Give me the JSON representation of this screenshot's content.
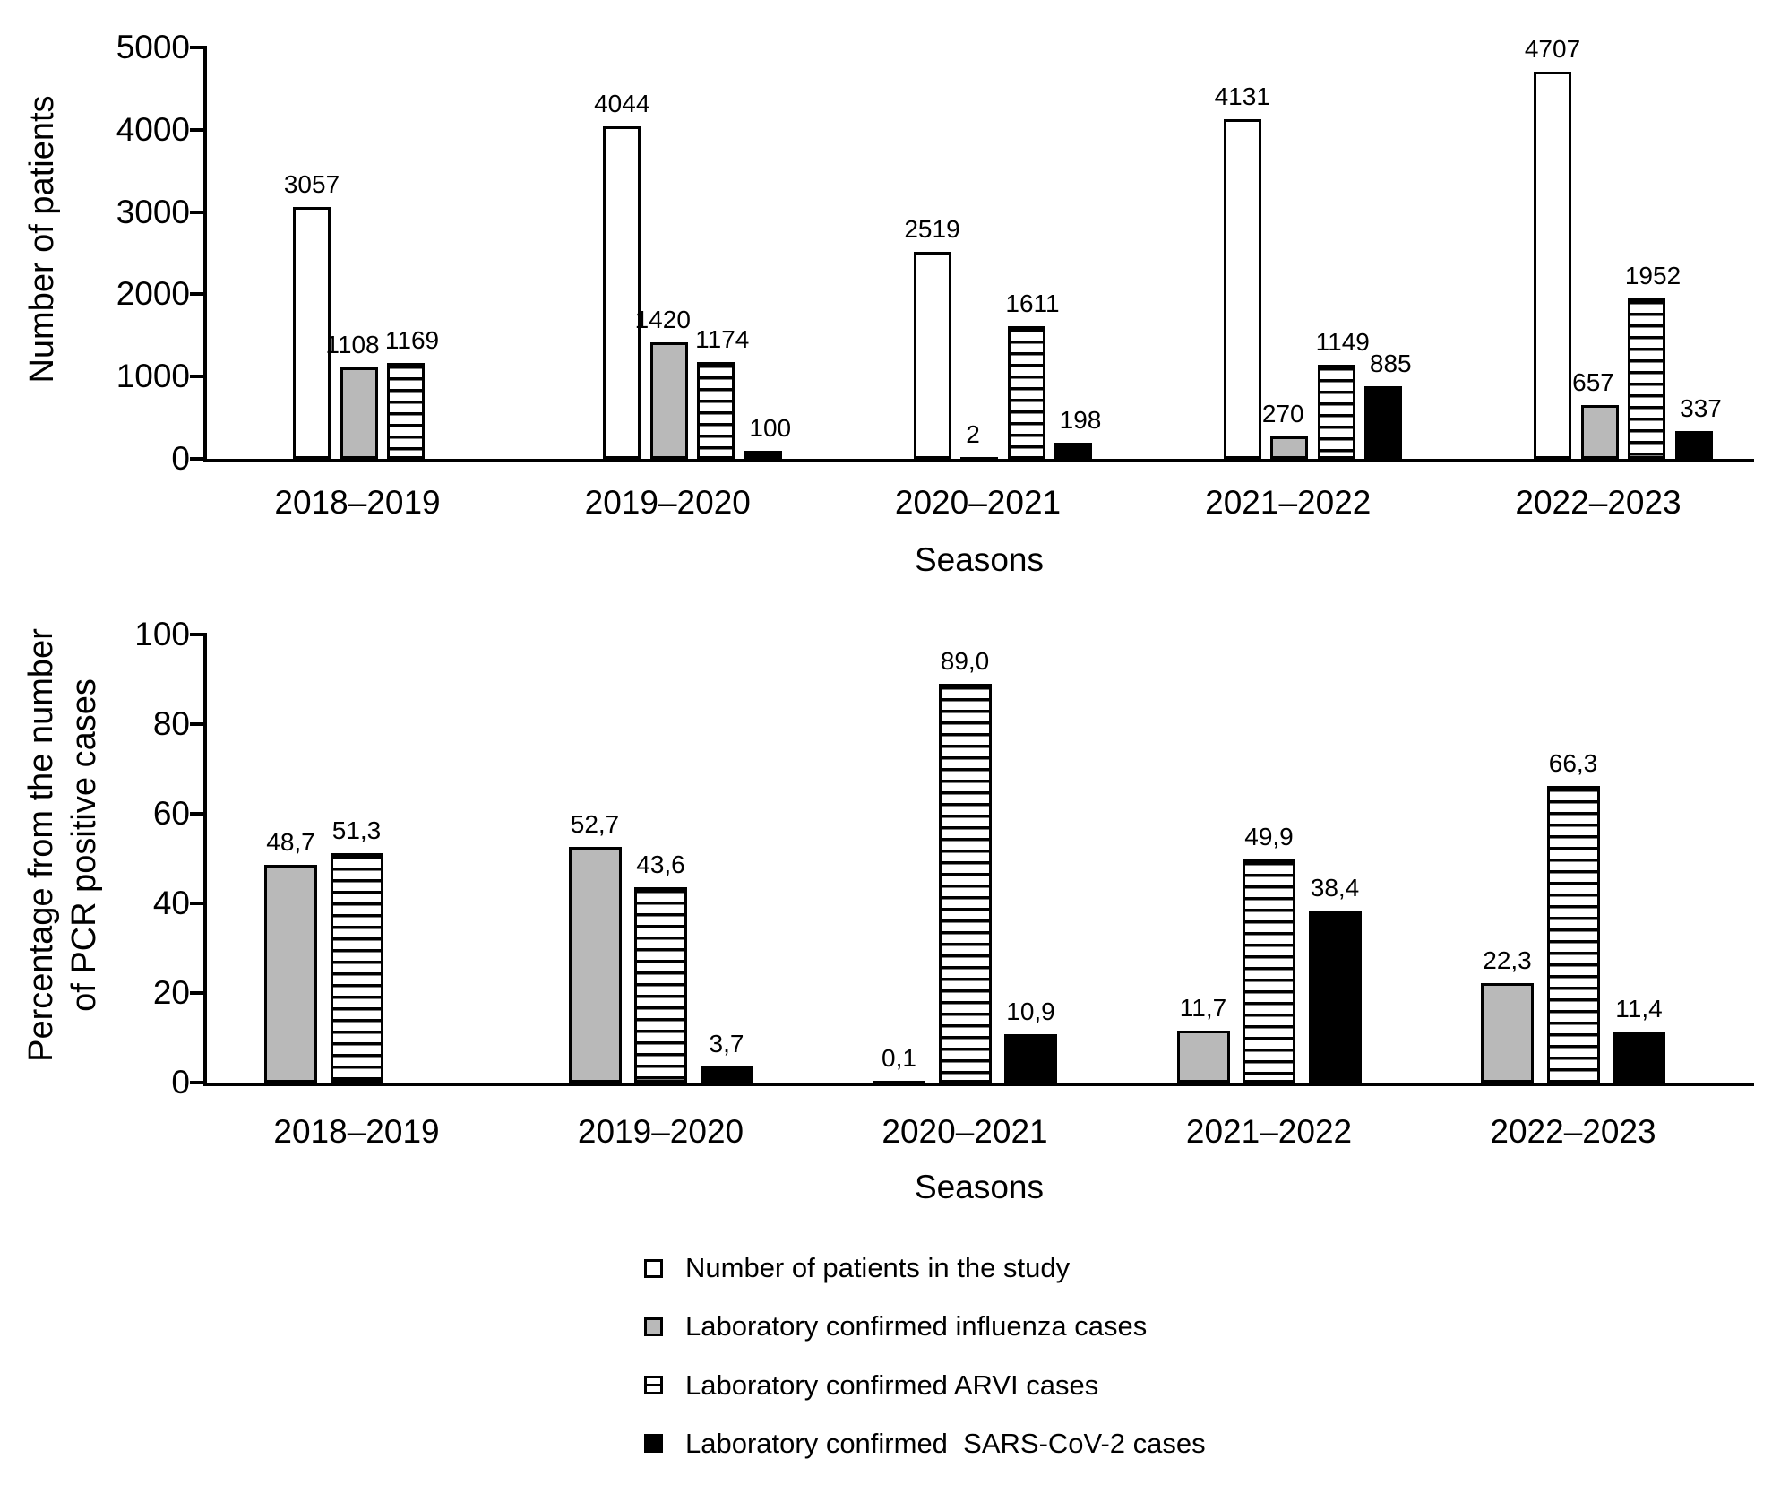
{
  "figure": {
    "background": "#ffffff",
    "colors": {
      "gray_fill": "#b9b9b9",
      "black": "#000000",
      "white": "#ffffff",
      "stroke": "#000000"
    }
  },
  "chart_data": [
    {
      "type": "bar",
      "title": "",
      "ylabel": "Number of patients",
      "xlabel": "Seasons",
      "categories": [
        "2018–2019",
        "2019–2020",
        "2020–2021",
        "2021–2022",
        "2022–2023"
      ],
      "ylim": [
        0,
        5000
      ],
      "yticks": [
        "0",
        "1000",
        "2000",
        "3000",
        "4000",
        "5000"
      ],
      "grid": false,
      "legend_position": "shared-bottom",
      "series": [
        {
          "name": "Number of patients in the study",
          "style": "white",
          "values": [
            3057,
            4044,
            2519,
            4131,
            4707
          ],
          "labels": [
            "3057",
            "4044",
            "2519",
            "4131",
            "4707"
          ]
        },
        {
          "name": "Laboratory confirmed influenza cases",
          "style": "gray",
          "values": [
            1108,
            1420,
            2,
            270,
            657
          ],
          "labels": [
            "1108",
            "1420",
            "2",
            "270",
            "657"
          ]
        },
        {
          "name": "Laboratory confirmed ARVI cases",
          "style": "striped",
          "values": [
            1169,
            1174,
            1611,
            1149,
            1952
          ],
          "labels": [
            "1169",
            "1174",
            "1611",
            "1149",
            "1952"
          ]
        },
        {
          "name": "Laboratory confirmed SARS-CoV-2 cases",
          "style": "black",
          "values": [
            null,
            100,
            198,
            885,
            337
          ],
          "labels": [
            null,
            "100",
            "198",
            "885",
            "337"
          ]
        }
      ]
    },
    {
      "type": "bar",
      "title": "",
      "ylabel": "Percentage from the number of PCR positive cases",
      "ylabel_lines": [
        "Percentage from the number",
        "of PCR positive cases"
      ],
      "xlabel": "Seasons",
      "categories": [
        "2018–2019",
        "2019–2020",
        "2020–2021",
        "2021–2022",
        "2022–2023"
      ],
      "ylim": [
        0,
        100
      ],
      "yticks": [
        "0",
        "20",
        "40",
        "60",
        "80",
        "100"
      ],
      "grid": false,
      "legend_position": "shared-bottom",
      "series": [
        {
          "name": "Laboratory confirmed influenza cases",
          "style": "gray",
          "values": [
            48.7,
            52.7,
            0.1,
            11.7,
            22.3
          ],
          "labels": [
            "48,7",
            "52,7",
            "0,1",
            "11,7",
            "22,3"
          ]
        },
        {
          "name": "Laboratory confirmed ARVI cases",
          "style": "striped",
          "values": [
            51.3,
            43.6,
            89.0,
            49.9,
            66.3
          ],
          "labels": [
            "51,3",
            "43,6",
            "89,0",
            "49,9",
            "66,3"
          ]
        },
        {
          "name": "Laboratory confirmed SARS-CoV-2 cases",
          "style": "black",
          "values": [
            null,
            3.7,
            10.9,
            38.4,
            11.4
          ],
          "labels": [
            null,
            "3,7",
            "10,9",
            "38,4",
            "11,4"
          ]
        }
      ]
    }
  ],
  "legend": {
    "items": [
      {
        "label": "Number of patients in the study",
        "swatch": "white"
      },
      {
        "label": "Laboratory confirmed influenza cases",
        "swatch": "gray"
      },
      {
        "label": "Laboratory confirmed ARVI cases",
        "swatch": "striped"
      },
      {
        "label": "Laboratory confirmed  SARS-CoV-2 cases",
        "swatch": "black"
      }
    ]
  }
}
